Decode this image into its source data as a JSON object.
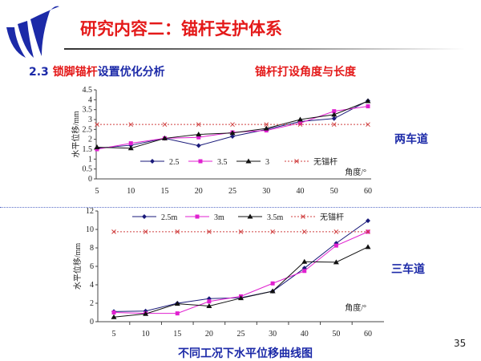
{
  "header": {
    "title": "研究内容二：锚杆支护体系",
    "section_num": "2.3",
    "section_red": "锁脚锚杆",
    "section_blue": "设置优化分析",
    "topic": "锚杆打设角度与长度"
  },
  "labels": {
    "two_lane": "两车道",
    "three_lane": "三车道",
    "caption": "不同工况下水平位移曲线图",
    "page": "35"
  },
  "colors": {
    "s1": "#1a1a7a",
    "s2": "#e020d0",
    "s3": "#111111",
    "ref": "#d04040"
  },
  "chart_data": [
    {
      "type": "line",
      "title": "",
      "xlabel": "角度/°",
      "ylabel": "水平位移/mm",
      "categories": [
        "5",
        "10",
        "15",
        "20",
        "25",
        "30",
        "40",
        "50",
        "60"
      ],
      "ylim": [
        0,
        4.5
      ],
      "yticks": [
        "0",
        "0.5",
        "1",
        "1.5",
        "2",
        "2.5",
        "3",
        "3.5",
        "4",
        "4.5"
      ],
      "legend": "bottom-center",
      "series": [
        {
          "name": "2.5",
          "marker": "diamond",
          "values": [
            1.55,
            1.7,
            2.05,
            1.68,
            2.15,
            2.5,
            2.9,
            3.05,
            3.95
          ]
        },
        {
          "name": "3.5",
          "marker": "square",
          "values": [
            1.5,
            1.8,
            2.05,
            2.1,
            2.35,
            2.45,
            2.82,
            3.42,
            3.67
          ]
        },
        {
          "name": "3",
          "marker": "triangle",
          "values": [
            1.6,
            1.55,
            2.05,
            2.25,
            2.32,
            2.55,
            3.0,
            3.25,
            3.93
          ]
        },
        {
          "name": "无锚杆",
          "marker": "x",
          "dashed": true,
          "values": [
            2.75,
            2.75,
            2.75,
            2.75,
            2.75,
            2.75,
            2.75,
            2.75,
            2.75
          ]
        }
      ]
    },
    {
      "type": "line",
      "title": "",
      "xlabel": "角度/°",
      "ylabel": "水平位移/mm",
      "categories": [
        "5",
        "10",
        "15",
        "20",
        "25",
        "30",
        "40",
        "50",
        "60"
      ],
      "ylim": [
        0,
        12
      ],
      "yticks": [
        "0",
        "2",
        "4",
        "6",
        "8",
        "10",
        "12"
      ],
      "legend": "top",
      "series": [
        {
          "name": "2.5m",
          "marker": "diamond",
          "values": [
            1.1,
            1.15,
            2.0,
            2.5,
            2.6,
            3.3,
            5.8,
            8.5,
            10.95
          ]
        },
        {
          "name": "3m",
          "marker": "square",
          "values": [
            1.0,
            0.9,
            0.9,
            2.2,
            2.75,
            4.15,
            5.5,
            8.25,
            9.75
          ]
        },
        {
          "name": "3.5m",
          "marker": "triangle",
          "values": [
            0.5,
            0.85,
            1.95,
            1.7,
            2.55,
            3.3,
            6.5,
            6.45,
            8.1
          ]
        },
        {
          "name": "无锚杆",
          "marker": "x",
          "dashed": true,
          "values": [
            9.75,
            9.75,
            9.75,
            9.75,
            9.75,
            9.75,
            9.75,
            9.75,
            9.75
          ]
        }
      ]
    }
  ]
}
